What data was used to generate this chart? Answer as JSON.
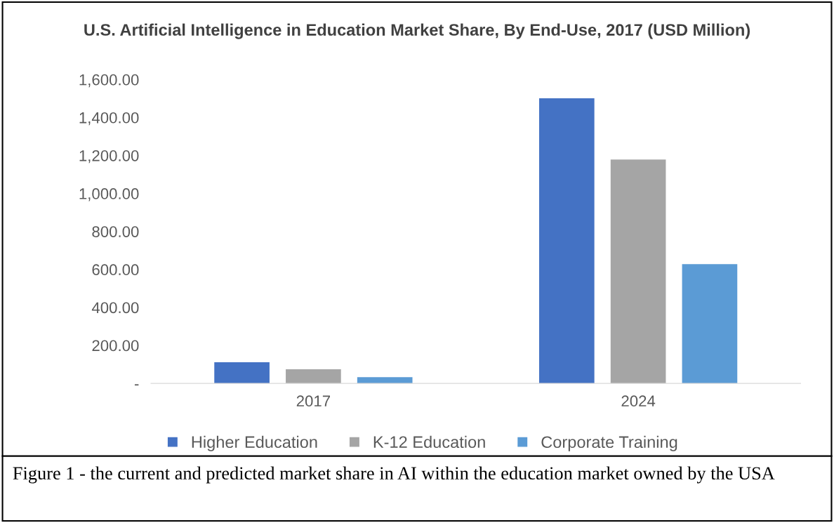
{
  "chart_data": {
    "type": "bar",
    "title": "U.S. Artificial Intelligence in Education Market Share, By End-Use, 2017 (USD Million)",
    "categories": [
      "2017",
      "2024"
    ],
    "series": [
      {
        "name": "Higher Education",
        "color": "#4472c4",
        "values": [
          111,
          1501
        ]
      },
      {
        "name": "K-12 Education",
        "color": "#a5a5a5",
        "values": [
          74,
          1179
        ]
      },
      {
        "name": "Corporate Training",
        "color": "#5b9bd5",
        "values": [
          33,
          628
        ]
      }
    ],
    "ylim": [
      0,
      1600
    ],
    "yticks": [
      {
        "value": 0,
        "label": "-"
      },
      {
        "value": 200,
        "label": "200.00"
      },
      {
        "value": 400,
        "label": "400.00"
      },
      {
        "value": 600,
        "label": "600.00"
      },
      {
        "value": 800,
        "label": "800.00"
      },
      {
        "value": 1000,
        "label": "1,000.00"
      },
      {
        "value": 1200,
        "label": "1,200.00"
      },
      {
        "value": 1400,
        "label": "1,400.00"
      },
      {
        "value": 1600,
        "label": "1,600.00"
      }
    ],
    "grid": false,
    "legend": "bottom",
    "annotations": [
      "Figure 1 - the current and predicted market share in AI within the education market owned by the USA"
    ]
  }
}
